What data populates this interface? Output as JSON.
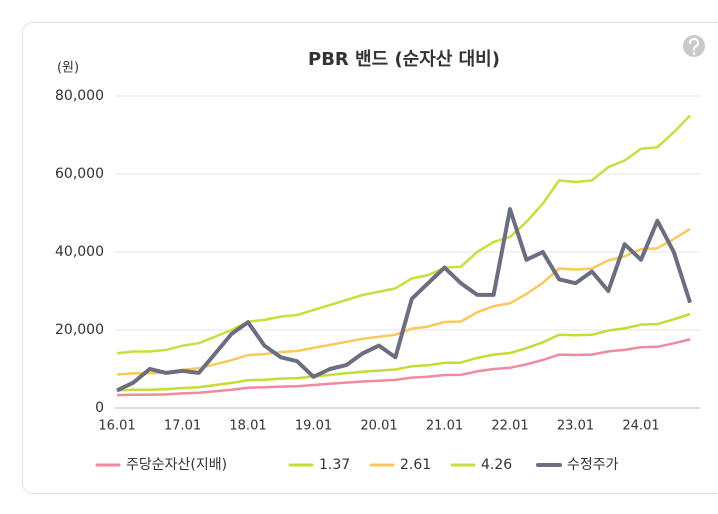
{
  "chart_data": {
    "type": "line",
    "title": "PBR 밴드 (순자산 대비)",
    "ylabel": "(원)",
    "categories": [
      "16.01",
      null,
      null,
      null,
      "17.01",
      null,
      null,
      null,
      "18.01",
      null,
      null,
      null,
      "19.01",
      null,
      null,
      null,
      "20.01",
      null,
      null,
      null,
      "21.01",
      null,
      null,
      null,
      "22.01",
      null,
      null,
      null,
      "23.01",
      null,
      null,
      null,
      "24.01",
      null,
      null,
      null
    ],
    "ylim": [
      0,
      80000
    ],
    "yticks": [
      0,
      {
        "value": 20000,
        "label": "20,000"
      },
      {
        "value": 40000,
        "label": "40,000"
      },
      {
        "value": 60000,
        "label": "60,000"
      },
      {
        "value": 80000,
        "label": "80,000"
      }
    ],
    "grid": true,
    "legend": "bottom",
    "series": [
      {
        "name": "주당순자산(지배)",
        "color": "#f08aa0",
        "values": [
          3300,
          3400,
          3400,
          3500,
          3750,
          3900,
          4300,
          4700,
          5200,
          5300,
          5500,
          5600,
          5900,
          6200,
          6500,
          6800,
          7000,
          7200,
          7800,
          8000,
          8450,
          8500,
          9400,
          10000,
          10300,
          11200,
          12300,
          13700,
          13600,
          13700,
          14500,
          14900,
          15600,
          15700,
          16600,
          17600
        ]
      },
      {
        "name": "1.37",
        "color": "#c5dc35",
        "values": [
          4521,
          4658,
          4658,
          4795,
          5138,
          5343,
          5891,
          6439,
          7124,
          7261,
          7535,
          7672,
          8083,
          8494,
          8905,
          9316,
          9590,
          9864,
          10686,
          10960,
          11577,
          11645,
          12878,
          13700,
          14111,
          15344,
          16851,
          18769,
          18632,
          18769,
          19865,
          20413,
          21372,
          21509,
          22742,
          24112
        ]
      },
      {
        "name": "2.61",
        "color": "#f9c95b",
        "values": [
          8613,
          8874,
          8874,
          9135,
          9788,
          10179,
          11223,
          12267,
          13572,
          13833,
          14355,
          14616,
          15399,
          16182,
          16965,
          17748,
          18270,
          18792,
          20358,
          20880,
          22055,
          22185,
          24534,
          26100,
          26883,
          29232,
          32103,
          35757,
          35496,
          35757,
          37845,
          38889,
          40716,
          40977,
          43326,
          45936
        ]
      },
      {
        "name": "4.26",
        "color": "#c5e040",
        "values": [
          14058,
          14484,
          14484,
          14910,
          15975,
          16614,
          18318,
          20022,
          22152,
          22578,
          23430,
          23856,
          25134,
          26412,
          27690,
          28968,
          29820,
          30672,
          33228,
          34080,
          35997,
          36210,
          40044,
          42600,
          43878,
          47712,
          52398,
          58362,
          57936,
          58362,
          61770,
          63474,
          66456,
          66882,
          70716,
          74976
        ]
      },
      {
        "name": "수정주가",
        "color": "#6b6d80",
        "values": [
          4500,
          6500,
          10000,
          9000,
          9500,
          9000,
          14000,
          19000,
          22000,
          16000,
          13000,
          12000,
          8000,
          10000,
          11000,
          14000,
          16000,
          13000,
          28000,
          32000,
          36000,
          32000,
          29000,
          29000,
          51000,
          38000,
          40000,
          33000,
          32000,
          35000,
          30000,
          42000,
          38000,
          48000,
          40000,
          27000
        ]
      }
    ]
  }
}
